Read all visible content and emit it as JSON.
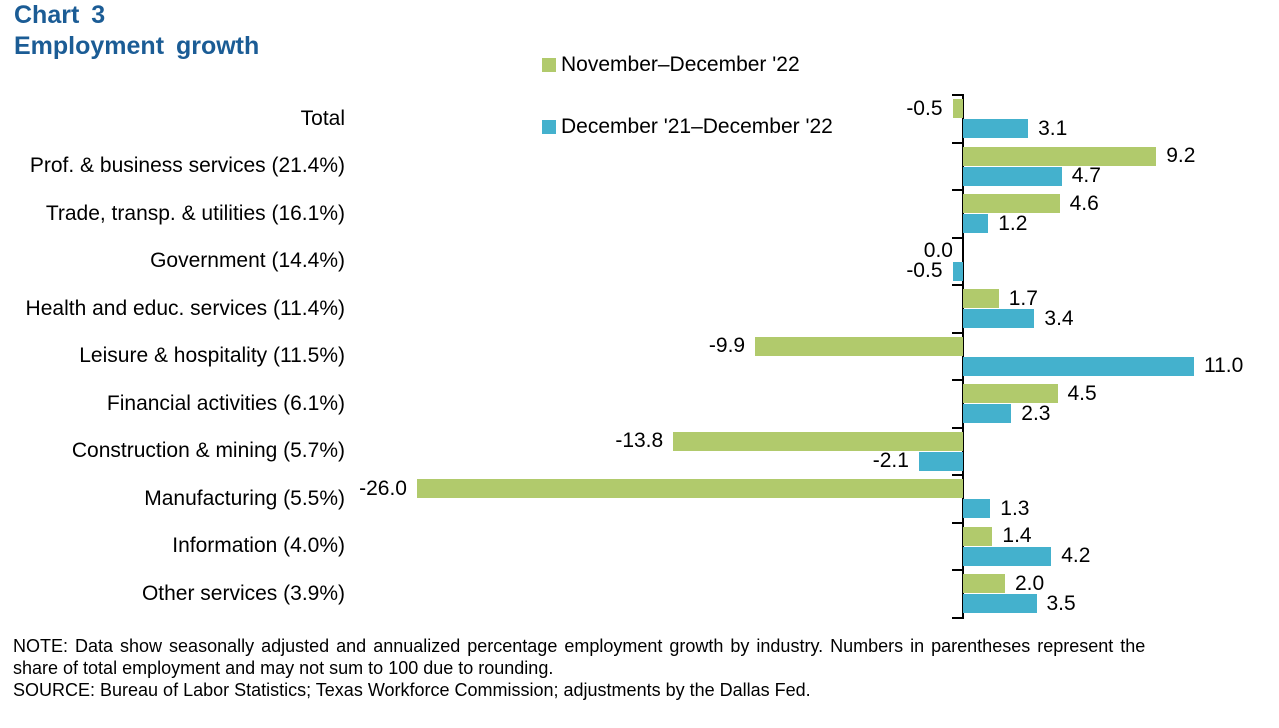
{
  "title": {
    "line1": "Chart 3",
    "line2": "Employment growth"
  },
  "chart_data": {
    "type": "bar",
    "orientation": "horizontal",
    "title": "Employment growth",
    "xlabel": "",
    "ylabel": "",
    "xlim": [
      -26,
      11
    ],
    "grid": false,
    "legend_position": "top-center",
    "value_labels": "outside-end, one decimal",
    "axis_style": "vertical zero baseline with outward ticks",
    "categories": [
      "Total",
      "Prof. & business services (21.4%)",
      "Trade, transp. & utilities (16.1%)",
      "Government (14.4%)",
      "Health and educ. services (11.4%)",
      "Leisure & hospitality (11.5%)",
      "Financial activities (6.1%)",
      "Construction & mining (5.7%)",
      "Manufacturing (5.5%)",
      "Information (4.0%)",
      "Other services (3.9%)"
    ],
    "series": [
      {
        "name": "November–December '22",
        "color": "#b1ca6c",
        "values": [
          -0.5,
          9.2,
          4.6,
          0.0,
          1.7,
          -9.9,
          4.5,
          -13.8,
          -26.0,
          1.4,
          2.0
        ]
      },
      {
        "name": "December '21–December '22",
        "color": "#44b1cd",
        "values": [
          3.1,
          4.7,
          1.2,
          -0.5,
          3.4,
          11.0,
          2.3,
          -2.1,
          1.3,
          4.2,
          3.5
        ]
      }
    ]
  },
  "colors": {
    "title_blue": "#1b5c95",
    "series_green": "#b1ca6c",
    "series_blue": "#44b1cd",
    "axis_black": "#000000"
  },
  "footnotes": {
    "note_line1": "NOTE: Data show seasonally adjusted and annualized percentage employment growth by industry. Numbers in parentheses represent the",
    "note_line2": "share of total employment and may not sum to 100 due to rounding.",
    "source": "SOURCE: Bureau of Labor Statistics; Texas Workforce Commission; adjustments by the Dallas Fed."
  }
}
